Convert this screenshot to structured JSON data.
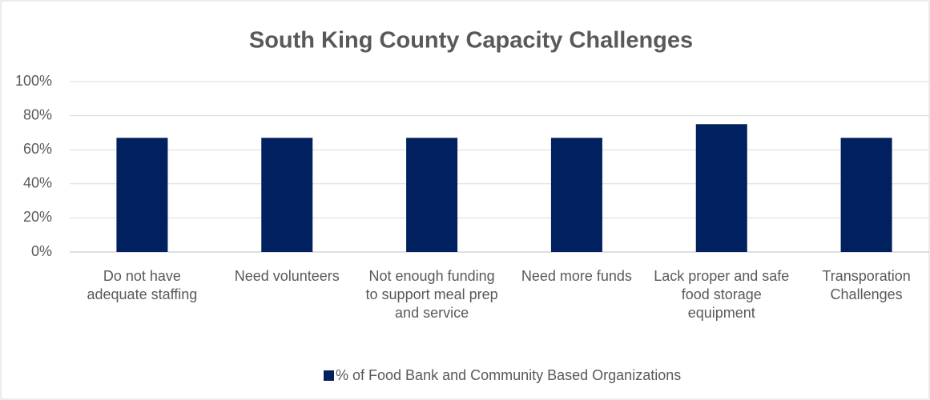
{
  "chart_data": {
    "type": "bar",
    "title": "South King County Capacity Challenges",
    "categories": [
      "Do not have adequate staffing",
      "Need volunteers",
      "Not enough funding to support meal prep and service",
      "Need more funds",
      "Lack proper and safe food storage equipment",
      "Transporation Challenges"
    ],
    "series": [
      {
        "name": "% of Food Bank and Community Based Organizations",
        "color": "#002060",
        "values": [
          67,
          67,
          67,
          67,
          75,
          67
        ]
      }
    ],
    "ylim": [
      0,
      100
    ],
    "yticks": [
      {
        "value": 0,
        "label": "0%"
      },
      {
        "value": 20,
        "label": "20%"
      },
      {
        "value": 40,
        "label": "40%"
      },
      {
        "value": 60,
        "label": "60%"
      },
      {
        "value": 80,
        "label": "80%"
      },
      {
        "value": 100,
        "label": "100%"
      }
    ],
    "grid": true,
    "legend": "bottom"
  }
}
